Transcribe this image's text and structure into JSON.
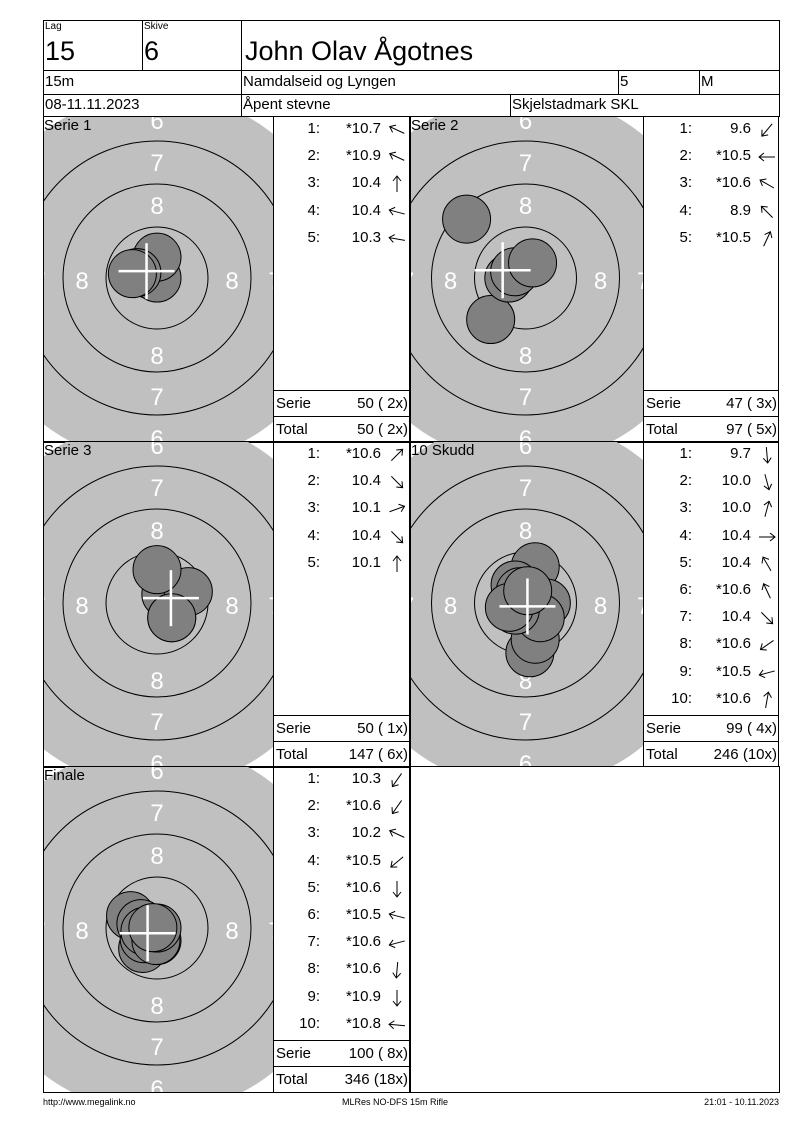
{
  "header": {
    "lag_label": "Lag",
    "lag": "15",
    "skive_label": "Skive",
    "skive": "6",
    "shooter_name": "John Olav Ågotnes",
    "distance": "15m",
    "club": "Namdalseid og Lyngen",
    "class_number": "5",
    "class_letter": "M",
    "date": "08-11.11.2023",
    "event": "Åpent stevne",
    "range": "Skjelstadmark SKL"
  },
  "target": {
    "ring_labels": {
      "outer": "6",
      "middle": "7",
      "inner": "8"
    },
    "colors": {
      "background": "#c0c0c0",
      "shot": "#808080",
      "ring_line": "#000000",
      "label": "#ffffff",
      "crosshair": "#ffffff"
    }
  },
  "sum_labels": {
    "serie": "Serie",
    "total": "Total"
  },
  "panels": [
    {
      "title": "Serie 1",
      "serie": "50 ( 2x)",
      "total": "50 ( 2x)",
      "shots": [
        {
          "n": "1:",
          "score": "*10.7",
          "arrow_deg": 295
        },
        {
          "n": "2:",
          "score": "*10.9",
          "arrow_deg": 295
        },
        {
          "n": "3:",
          "score": "10.4",
          "arrow_deg": 0
        },
        {
          "n": "4:",
          "score": "10.4",
          "arrow_deg": 285
        },
        {
          "n": "5:",
          "score": "10.3",
          "arrow_deg": 280
        }
      ]
    },
    {
      "title": "Serie 2",
      "serie": "47 ( 3x)",
      "total": "97 ( 5x)",
      "shots": [
        {
          "n": "1:",
          "score": "9.6",
          "arrow_deg": 220
        },
        {
          "n": "2:",
          "score": "*10.5",
          "arrow_deg": 270
        },
        {
          "n": "3:",
          "score": "*10.6",
          "arrow_deg": 300
        },
        {
          "n": "4:",
          "score": "8.9",
          "arrow_deg": 315
        },
        {
          "n": "5:",
          "score": "*10.5",
          "arrow_deg": 25
        }
      ]
    },
    {
      "title": "Serie 3",
      "serie": "50 ( 1x)",
      "total": "147 ( 6x)",
      "shots": [
        {
          "n": "1:",
          "score": "*10.6",
          "arrow_deg": 45
        },
        {
          "n": "2:",
          "score": "10.4",
          "arrow_deg": 135
        },
        {
          "n": "3:",
          "score": "10.1",
          "arrow_deg": 70
        },
        {
          "n": "4:",
          "score": "10.4",
          "arrow_deg": 135
        },
        {
          "n": "5:",
          "score": "10.1",
          "arrow_deg": 0
        }
      ]
    },
    {
      "title": "10 Skudd",
      "serie": "99 ( 4x)",
      "total": "246 (10x)",
      "shots": [
        {
          "n": "1:",
          "score": "9.7",
          "arrow_deg": 175
        },
        {
          "n": "2:",
          "score": "10.0",
          "arrow_deg": 165
        },
        {
          "n": "3:",
          "score": "10.0",
          "arrow_deg": 15
        },
        {
          "n": "4:",
          "score": "10.4",
          "arrow_deg": 90
        },
        {
          "n": "5:",
          "score": "10.4",
          "arrow_deg": 330
        },
        {
          "n": "6:",
          "score": "*10.6",
          "arrow_deg": 335
        },
        {
          "n": "7:",
          "score": "10.4",
          "arrow_deg": 135
        },
        {
          "n": "8:",
          "score": "*10.6",
          "arrow_deg": 235
        },
        {
          "n": "9:",
          "score": "*10.5",
          "arrow_deg": 255
        },
        {
          "n": "10:",
          "score": "*10.6",
          "arrow_deg": 10
        }
      ]
    },
    {
      "title": "Finale",
      "serie": "100 ( 8x)",
      "total": "346 (18x)",
      "shots": [
        {
          "n": "1:",
          "score": "10.3",
          "arrow_deg": 215
        },
        {
          "n": "2:",
          "score": "*10.6",
          "arrow_deg": 215
        },
        {
          "n": "3:",
          "score": "10.2",
          "arrow_deg": 295
        },
        {
          "n": "4:",
          "score": "*10.5",
          "arrow_deg": 230
        },
        {
          "n": "5:",
          "score": "*10.6",
          "arrow_deg": 180
        },
        {
          "n": "6:",
          "score": "*10.5",
          "arrow_deg": 285
        },
        {
          "n": "7:",
          "score": "*10.6",
          "arrow_deg": 255
        },
        {
          "n": "8:",
          "score": "*10.6",
          "arrow_deg": 185
        },
        {
          "n": "9:",
          "score": "*10.9",
          "arrow_deg": 180
        },
        {
          "n": "10:",
          "score": "*10.8",
          "arrow_deg": 275
        }
      ]
    }
  ],
  "footer": {
    "website": "http://www.megalink.no",
    "software": "MLRes NO-DFS 15m Rifle",
    "printed": "21:01 - 10.11.2023"
  }
}
